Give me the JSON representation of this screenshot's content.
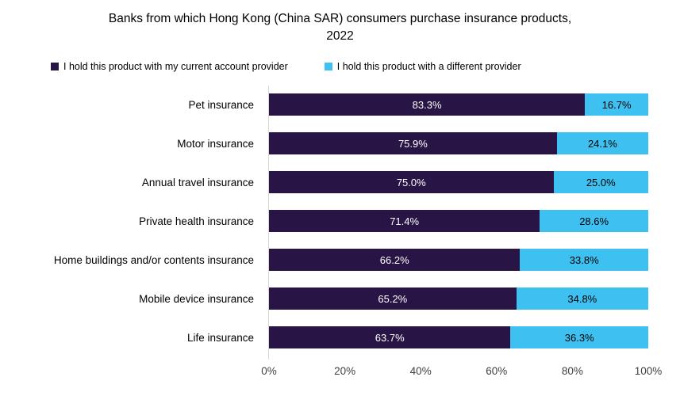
{
  "chart_data": {
    "type": "bar",
    "orientation": "horizontal",
    "stacked": true,
    "title": "Banks from which Hong Kong (China SAR) consumers purchase insurance products, 2022",
    "categories": [
      "Pet insurance",
      "Motor insurance",
      "Annual travel insurance",
      "Private health insurance",
      "Home buildings and/or contents insurance",
      "Mobile device insurance",
      "Life insurance"
    ],
    "series": [
      {
        "name": "I hold this product with my current account provider",
        "color": "#281445",
        "label_color": "#ffffff",
        "values": [
          83.3,
          75.9,
          75.0,
          71.4,
          66.2,
          65.2,
          63.7
        ]
      },
      {
        "name": "I hold this product with a different provider",
        "color": "#3ec1f0",
        "label_color": "#000000",
        "values": [
          16.7,
          24.1,
          25.0,
          28.6,
          33.8,
          34.8,
          36.3
        ]
      }
    ],
    "value_label_suffix": "%",
    "xlim": [
      0,
      100
    ],
    "x_ticks": [
      "0%",
      "20%",
      "40%",
      "60%",
      "80%",
      "100%"
    ],
    "legend_position": "top",
    "axis_line_color": "#d9d9d9",
    "tick_text_color": "#404040",
    "grid": false
  }
}
